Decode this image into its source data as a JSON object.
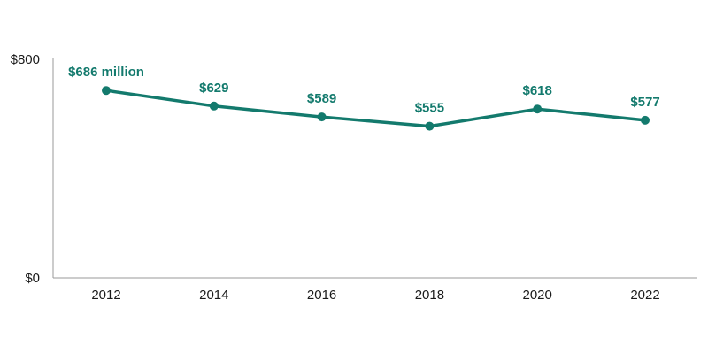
{
  "colors": {
    "series": "#137a6d",
    "axis": "#9a9a9a",
    "text": "#1a1a1a"
  },
  "chart_data": {
    "type": "line",
    "title": "",
    "xlabel": "",
    "ylabel": "",
    "x": [
      2012,
      2014,
      2016,
      2018,
      2020,
      2022
    ],
    "categories": [
      "2012",
      "2014",
      "2016",
      "2018",
      "2020",
      "2022"
    ],
    "values": [
      686,
      629,
      589,
      555,
      618,
      577
    ],
    "data_labels": [
      "$686 million",
      "$629",
      "$589",
      "$555",
      "$618",
      "$577"
    ],
    "ylim": [
      0,
      800
    ],
    "y_ticks": [
      0,
      800
    ],
    "y_tick_labels": [
      "$0",
      "$800"
    ],
    "grid": false,
    "legend": "none"
  }
}
